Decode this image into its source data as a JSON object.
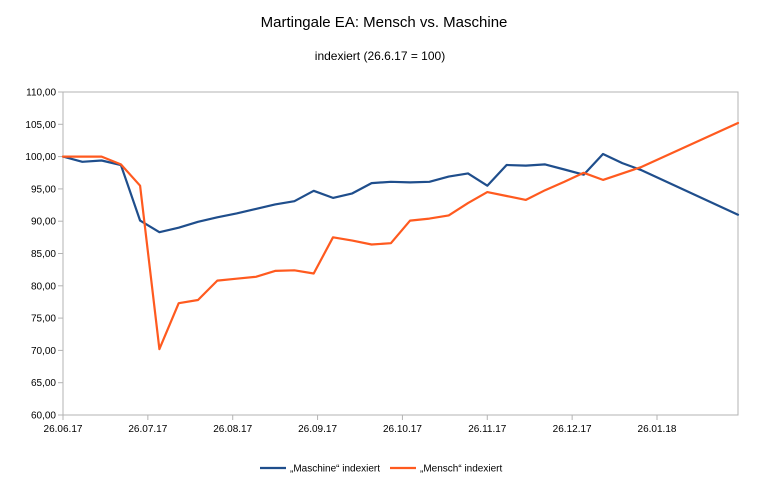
{
  "chart_data": {
    "type": "line",
    "title": "Martingale EA: Mensch vs. Maschine",
    "subtitle": "indexiert (26.6.17 = 100)",
    "ylim": [
      60,
      110
    ],
    "y_ticks": [
      "60,00",
      "65,00",
      "70,00",
      "75,00",
      "80,00",
      "85,00",
      "90,00",
      "95,00",
      "100,00",
      "105,00",
      "110,00"
    ],
    "y_tick_values": [
      60,
      65,
      70,
      75,
      80,
      85,
      90,
      95,
      100,
      105,
      110
    ],
    "x_range": [
      0,
      35
    ],
    "x_ticks": [
      "26.06.17",
      "26.07.17",
      "26.08.17",
      "26.09.17",
      "26.10.17",
      "26.11.17",
      "26.12.17",
      "26.01.18"
    ],
    "x_tick_positions": [
      0,
      4.4,
      8.8,
      13.2,
      17.6,
      22,
      26.4,
      30.8
    ],
    "grid": false,
    "legend": "bottom",
    "series": [
      {
        "name": "„Maschine“ indexiert",
        "color": "#1f4e8c",
        "values": [
          [
            0,
            100.0
          ],
          [
            1,
            99.2
          ],
          [
            2,
            99.4
          ],
          [
            3,
            98.7
          ],
          [
            4,
            90.1
          ],
          [
            5,
            88.3
          ],
          [
            6,
            89.0
          ],
          [
            7,
            89.9
          ],
          [
            8,
            90.6
          ],
          [
            9,
            91.2
          ],
          [
            10,
            91.9
          ],
          [
            11,
            92.6
          ],
          [
            12,
            93.1
          ],
          [
            13,
            94.7
          ],
          [
            14,
            93.6
          ],
          [
            15,
            94.3
          ],
          [
            16,
            95.9
          ],
          [
            17,
            96.1
          ],
          [
            18,
            96.0
          ],
          [
            19,
            96.1
          ],
          [
            20,
            96.9
          ],
          [
            21,
            97.4
          ],
          [
            22,
            95.5
          ],
          [
            23,
            98.7
          ],
          [
            24,
            98.6
          ],
          [
            25,
            98.8
          ],
          [
            26,
            98.0
          ],
          [
            27,
            97.2
          ],
          [
            28,
            100.4
          ],
          [
            29,
            99.0
          ],
          [
            30,
            97.9
          ],
          [
            35,
            91.0
          ]
        ]
      },
      {
        "name": "„Mensch“ indexiert",
        "color": "#ff5a1f",
        "values": [
          [
            0,
            100.0
          ],
          [
            1,
            100.0
          ],
          [
            2,
            100.0
          ],
          [
            3,
            98.8
          ],
          [
            4,
            95.5
          ],
          [
            5,
            70.2
          ],
          [
            6,
            77.3
          ],
          [
            7,
            77.8
          ],
          [
            8,
            80.8
          ],
          [
            9,
            81.1
          ],
          [
            10,
            81.4
          ],
          [
            11,
            82.3
          ],
          [
            12,
            82.4
          ],
          [
            13,
            81.9
          ],
          [
            14,
            87.5
          ],
          [
            15,
            87.0
          ],
          [
            16,
            86.4
          ],
          [
            17,
            86.6
          ],
          [
            18,
            90.1
          ],
          [
            19,
            90.4
          ],
          [
            20,
            90.9
          ],
          [
            21,
            92.8
          ],
          [
            22,
            94.5
          ],
          [
            23,
            93.9
          ],
          [
            24,
            93.3
          ],
          [
            25,
            94.8
          ],
          [
            26,
            96.1
          ],
          [
            27,
            97.5
          ],
          [
            28,
            96.4
          ],
          [
            29,
            97.4
          ],
          [
            30,
            98.4
          ],
          [
            35,
            105.2
          ]
        ]
      }
    ]
  }
}
